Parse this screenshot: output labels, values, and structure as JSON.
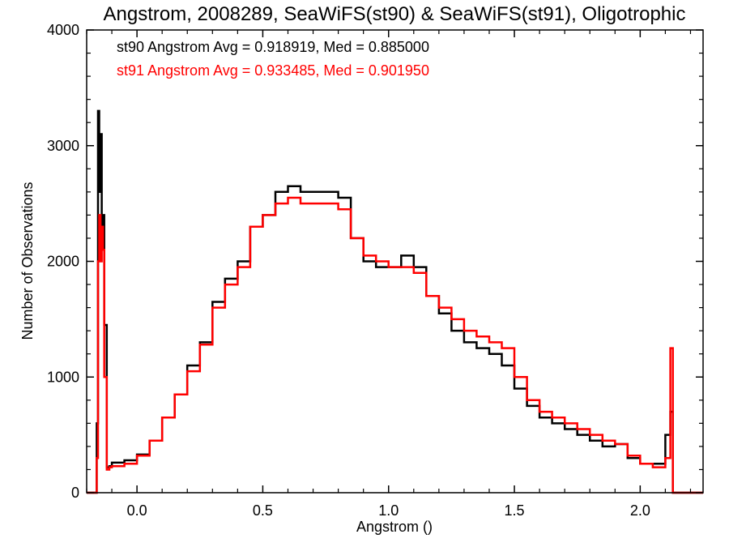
{
  "chart_data": {
    "type": "line",
    "title": "Angstrom, 2008289, SeaWiFS(st90) & SeaWiFS(st91), Oligotrophic",
    "xlabel": "Angstrom ()",
    "ylabel": "Number of Observations",
    "xlim": [
      -0.2,
      2.25
    ],
    "ylim": [
      0,
      4000
    ],
    "x_ticks": [
      0.0,
      0.5,
      1.0,
      1.5,
      2.0
    ],
    "x_tick_labels": [
      "0.0",
      "0.5",
      "1.0",
      "1.5",
      "2.0"
    ],
    "y_ticks": [
      0,
      1000,
      2000,
      3000,
      4000
    ],
    "y_tick_labels": [
      "0",
      "1000",
      "2000",
      "3000",
      "4000"
    ],
    "grid": false,
    "step": true,
    "annotations": [
      {
        "text": "st90 Angstrom Avg = 0.918919, Med = 0.885000",
        "color": "#000000"
      },
      {
        "text": "st91 Angstrom Avg = 0.933485, Med = 0.901950",
        "color": "#ff0000"
      }
    ],
    "series": [
      {
        "color": "#000000",
        "x": [
          -0.2,
          -0.17,
          -0.16,
          -0.155,
          -0.15,
          -0.145,
          -0.14,
          -0.135,
          -0.13,
          -0.12,
          -0.11,
          -0.1,
          -0.05,
          0.0,
          0.05,
          0.1,
          0.15,
          0.2,
          0.25,
          0.3,
          0.35,
          0.4,
          0.45,
          0.5,
          0.55,
          0.6,
          0.65,
          0.7,
          0.75,
          0.8,
          0.85,
          0.9,
          0.95,
          1.0,
          1.05,
          1.1,
          1.15,
          1.2,
          1.25,
          1.3,
          1.35,
          1.4,
          1.45,
          1.5,
          1.55,
          1.6,
          1.65,
          1.7,
          1.75,
          1.8,
          1.85,
          1.9,
          1.95,
          2.0,
          2.05,
          2.1,
          2.12,
          2.13,
          2.14,
          2.15,
          2.25
        ],
        "y": [
          0,
          0,
          600,
          3300,
          2600,
          3100,
          2100,
          2400,
          1450,
          220,
          230,
          260,
          280,
          330,
          450,
          650,
          850,
          1100,
          1300,
          1650,
          1850,
          2000,
          2300,
          2400,
          2600,
          2650,
          2600,
          2600,
          2600,
          2550,
          2200,
          2000,
          1950,
          1950,
          2050,
          1950,
          1700,
          1550,
          1400,
          1300,
          1250,
          1200,
          1100,
          900,
          750,
          650,
          600,
          550,
          500,
          450,
          400,
          420,
          300,
          250,
          250,
          500,
          700,
          0,
          0,
          0,
          0
        ]
      },
      {
        "color": "#ff0000",
        "x": [
          -0.2,
          -0.17,
          -0.16,
          -0.155,
          -0.15,
          -0.145,
          -0.14,
          -0.135,
          -0.13,
          -0.12,
          -0.11,
          -0.1,
          -0.05,
          0.0,
          0.05,
          0.1,
          0.15,
          0.2,
          0.25,
          0.3,
          0.35,
          0.4,
          0.45,
          0.5,
          0.55,
          0.6,
          0.65,
          0.7,
          0.75,
          0.8,
          0.85,
          0.9,
          0.95,
          1.0,
          1.05,
          1.1,
          1.15,
          1.2,
          1.25,
          1.3,
          1.35,
          1.4,
          1.45,
          1.5,
          1.55,
          1.6,
          1.65,
          1.7,
          1.75,
          1.8,
          1.85,
          1.9,
          1.95,
          2.0,
          2.05,
          2.1,
          2.12,
          2.13,
          2.14,
          2.15,
          2.25
        ],
        "y": [
          0,
          0,
          300,
          2000,
          2400,
          2000,
          2300,
          2100,
          1000,
          200,
          220,
          230,
          250,
          320,
          450,
          650,
          850,
          1050,
          1280,
          1600,
          1800,
          1950,
          2300,
          2400,
          2500,
          2550,
          2500,
          2500,
          2500,
          2450,
          2200,
          2050,
          2000,
          1950,
          1950,
          1900,
          1700,
          1600,
          1500,
          1400,
          1350,
          1300,
          1250,
          1000,
          800,
          700,
          650,
          600,
          550,
          500,
          450,
          420,
          320,
          250,
          220,
          300,
          1250,
          0,
          0,
          0,
          0
        ]
      }
    ]
  }
}
